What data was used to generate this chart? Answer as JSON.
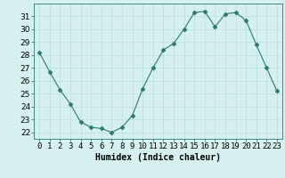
{
  "x": [
    0,
    1,
    2,
    3,
    4,
    5,
    6,
    7,
    8,
    9,
    10,
    11,
    12,
    13,
    14,
    15,
    16,
    17,
    18,
    19,
    20,
    21,
    22,
    23
  ],
  "y": [
    28.2,
    26.7,
    25.3,
    24.2,
    22.8,
    22.4,
    22.3,
    22.0,
    22.4,
    23.3,
    25.4,
    27.0,
    28.4,
    28.9,
    30.0,
    31.3,
    31.4,
    30.2,
    31.2,
    31.3,
    30.7,
    28.8,
    27.0,
    25.2
  ],
  "line_color": "#2d7a6a",
  "marker": "D",
  "marker_size": 2.5,
  "bg_color": "#d6f0f0",
  "grid_color": "#b8dede",
  "xlabel": "Humidex (Indice chaleur)",
  "ylim": [
    21.5,
    32.0
  ],
  "xlim": [
    -0.5,
    23.5
  ],
  "yticks": [
    22,
    23,
    24,
    25,
    26,
    27,
    28,
    29,
    30,
    31
  ],
  "xlabel_fontsize": 7,
  "tick_fontsize": 6.5
}
